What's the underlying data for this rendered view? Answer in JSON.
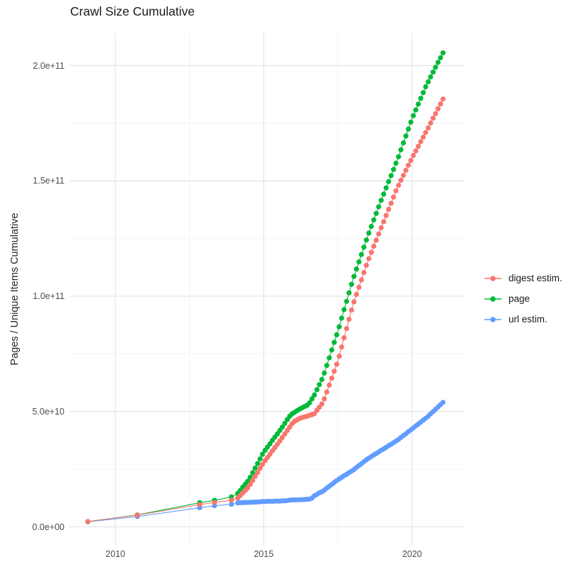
{
  "chart_data": {
    "type": "scatter",
    "title": "Crawl Size Cumulative",
    "xlabel": "",
    "ylabel": "Pages / Unique Items Cumulative",
    "values_unit": "1e9 (billions of pages / unique items)",
    "legend_position": "right",
    "grid": true,
    "xlim": [
      2008.45,
      2021.77
    ],
    "ylim_e9": [
      -7.8,
      214.0
    ],
    "x_tick_values": [
      2010,
      2015,
      2020
    ],
    "x_tick_labels": [
      "2010",
      "2015",
      "2020"
    ],
    "x_minor_values": [
      2012.5,
      2017.5
    ],
    "y_tick_values_e9": [
      0,
      50,
      100,
      150,
      200
    ],
    "y_tick_labels": [
      "0.0e+00",
      "5.0e+10",
      "1.0e+11",
      "1.5e+11",
      "2.0e+11"
    ],
    "y_minor_values_e9": [
      25,
      75,
      125,
      175
    ],
    "colors": {
      "grid_major": "#e3e3e3",
      "grid_minor": "#f1f1f1",
      "axis_text": "#4d4d4d",
      "title_text": "#1a1a1a"
    },
    "x": [
      2009.07,
      2010.74,
      2012.84,
      2013.34,
      2013.91,
      2014.125,
      2014.208,
      2014.292,
      2014.375,
      2014.458,
      2014.542,
      2014.625,
      2014.708,
      2014.792,
      2014.875,
      2014.958,
      2015.042,
      2015.125,
      2015.208,
      2015.292,
      2015.375,
      2015.458,
      2015.542,
      2015.625,
      2015.708,
      2015.792,
      2015.875,
      2015.958,
      2016.042,
      2016.125,
      2016.208,
      2016.292,
      2016.375,
      2016.458,
      2016.542,
      2016.625,
      2016.708,
      2016.792,
      2016.875,
      2016.958,
      2017.042,
      2017.125,
      2017.208,
      2017.292,
      2017.375,
      2017.458,
      2017.542,
      2017.625,
      2017.708,
      2017.792,
      2017.875,
      2017.958,
      2018.042,
      2018.125,
      2018.208,
      2018.292,
      2018.375,
      2018.458,
      2018.542,
      2018.625,
      2018.708,
      2018.792,
      2018.875,
      2018.958,
      2019.042,
      2019.125,
      2019.208,
      2019.292,
      2019.375,
      2019.458,
      2019.542,
      2019.625,
      2019.708,
      2019.792,
      2019.875,
      2019.958,
      2020.042,
      2020.125,
      2020.208,
      2020.292,
      2020.375,
      2020.458,
      2020.542,
      2020.625,
      2020.708,
      2020.792,
      2020.875,
      2020.958,
      2021.042
    ],
    "series": [
      {
        "name": "digest estim.",
        "color": "#F8766D",
        "values_e9": [
          2.3,
          5.1,
          9.7,
          10.6,
          11.6,
          12.5,
          13.6,
          14.7,
          15.8,
          16.9,
          18.4,
          20.1,
          21.9,
          23.6,
          25.4,
          27.1,
          28.7,
          30.1,
          31.5,
          33.0,
          34.4,
          35.8,
          37.3,
          38.8,
          40.3,
          41.8,
          43.3,
          44.8,
          45.8,
          46.4,
          47.0,
          47.4,
          47.7,
          48.0,
          48.4,
          48.7,
          49.1,
          50.5,
          51.9,
          53.3,
          55.5,
          58.5,
          61.5,
          64.5,
          67.5,
          70.5,
          74.0,
          78.0,
          82.0,
          86.0,
          90.0,
          94.0,
          97.6,
          100.8,
          103.9,
          107.1,
          110.3,
          113.4,
          116.3,
          119.0,
          121.7,
          124.3,
          127.0,
          129.7,
          132.3,
          135.0,
          137.7,
          140.3,
          143.0,
          145.7,
          148.1,
          150.3,
          152.4,
          154.6,
          156.8,
          158.9,
          161.0,
          163.0,
          165.0,
          167.0,
          169.0,
          171.0,
          173.0,
          175.1,
          177.2,
          179.2,
          181.3,
          183.4,
          185.5
        ]
      },
      {
        "name": "page",
        "color": "#00BA38",
        "values_e9": [
          2.3,
          5.2,
          10.5,
          11.5,
          13.0,
          14.5,
          15.8,
          17.2,
          18.5,
          19.8,
          21.5,
          23.5,
          25.5,
          27.5,
          29.5,
          31.5,
          33.2,
          34.6,
          36.0,
          37.5,
          38.9,
          40.3,
          41.8,
          43.3,
          44.9,
          46.5,
          48.0,
          49.0,
          49.7,
          50.4,
          51.1,
          51.6,
          52.2,
          52.7,
          53.8,
          55.5,
          57.2,
          59.5,
          61.7,
          63.9,
          66.7,
          70.0,
          73.3,
          76.7,
          80.0,
          83.3,
          86.8,
          90.5,
          94.2,
          97.8,
          101.5,
          105.2,
          108.6,
          111.8,
          114.9,
          118.1,
          121.3,
          124.4,
          127.4,
          130.3,
          133.1,
          135.9,
          138.8,
          141.6,
          144.3,
          147.0,
          149.7,
          152.3,
          155.0,
          157.7,
          160.5,
          163.5,
          166.5,
          169.5,
          172.5,
          175.5,
          178.3,
          180.8,
          183.3,
          185.8,
          188.3,
          190.8,
          193.0,
          195.1,
          197.2,
          199.3,
          201.4,
          203.4,
          205.5
        ]
      },
      {
        "name": "url estim.",
        "color": "#619CFF",
        "values_e9": [
          2.2,
          4.5,
          8.3,
          9.2,
          9.8,
          10.4,
          10.5,
          10.5,
          10.6,
          10.6,
          10.7,
          10.7,
          10.8,
          10.8,
          10.9,
          11.0,
          11.0,
          11.1,
          11.1,
          11.1,
          11.2,
          11.2,
          11.2,
          11.3,
          11.3,
          11.4,
          11.6,
          11.7,
          11.7,
          11.7,
          11.8,
          11.8,
          11.9,
          12.0,
          12.0,
          12.5,
          13.5,
          14.1,
          14.8,
          15.2,
          15.9,
          16.8,
          17.6,
          18.4,
          19.3,
          20.1,
          20.8,
          21.5,
          22.2,
          22.8,
          23.5,
          24.2,
          24.9,
          25.8,
          26.6,
          27.4,
          28.3,
          29.1,
          29.8,
          30.5,
          31.2,
          31.8,
          32.5,
          33.2,
          33.8,
          34.5,
          35.2,
          35.8,
          36.5,
          37.2,
          37.9,
          38.8,
          39.6,
          40.4,
          41.3,
          42.1,
          42.9,
          43.8,
          44.6,
          45.4,
          46.3,
          47.1,
          48.0,
          49.0,
          50.0,
          51.0,
          52.0,
          53.0,
          54.0
        ]
      }
    ]
  }
}
